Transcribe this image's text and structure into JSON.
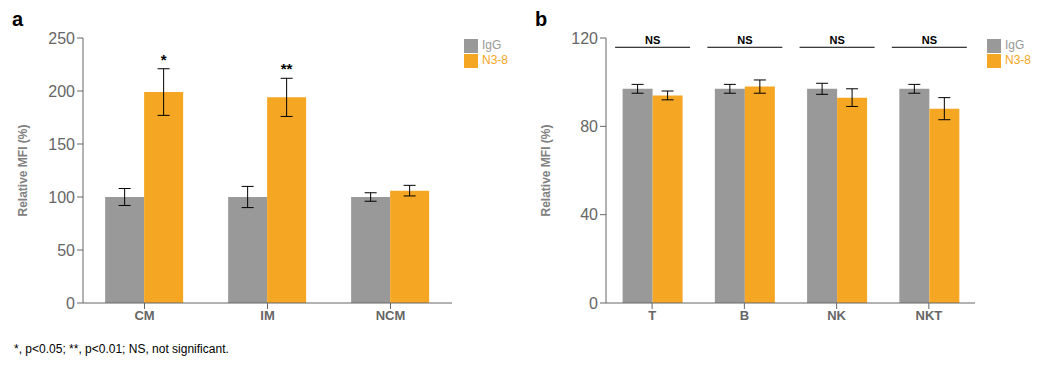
{
  "chart_data": [
    {
      "type": "bar",
      "title": "a",
      "categories": [
        "CM",
        "IM",
        "NCM"
      ],
      "series": [
        {
          "name": "IgG",
          "color": "#999999",
          "values": [
            100,
            100,
            100
          ],
          "errors": [
            8,
            10,
            4
          ]
        },
        {
          "name": "N3-8",
          "color": "#F5A623",
          "values": [
            199,
            194,
            106
          ],
          "errors": [
            22,
            18,
            5
          ]
        }
      ],
      "ylabel": "Relative MFI (%)",
      "ylim": [
        0,
        250
      ],
      "yticks": [
        0,
        50,
        100,
        150,
        200,
        250
      ],
      "legend": "upper right",
      "annotations": [
        {
          "category": "CM",
          "series": "N3-8",
          "text": "*"
        },
        {
          "category": "IM",
          "series": "N3-8",
          "text": "**"
        }
      ]
    },
    {
      "type": "bar",
      "title": "b",
      "categories": [
        "T",
        "B",
        "NK",
        "NKT"
      ],
      "series": [
        {
          "name": "IgG",
          "color": "#999999",
          "values": [
            97,
            97,
            97,
            97
          ],
          "errors": [
            2,
            2,
            2.5,
            2
          ]
        },
        {
          "name": "N3-8",
          "color": "#F5A623",
          "values": [
            94,
            98,
            93,
            88
          ],
          "errors": [
            2,
            3,
            4,
            5
          ]
        }
      ],
      "ylabel": "Relative MFI (%)",
      "ylim": [
        0,
        120
      ],
      "yticks": [
        0,
        40,
        80,
        120
      ],
      "legend": "upper right",
      "annotations": [
        {
          "category": "T",
          "text": "NS"
        },
        {
          "category": "B",
          "text": "NS"
        },
        {
          "category": "NK",
          "text": "NS"
        },
        {
          "category": "NKT",
          "text": "NS"
        }
      ]
    }
  ],
  "footnote": "*, p<0.05; **, p<0.01; NS, not significant."
}
